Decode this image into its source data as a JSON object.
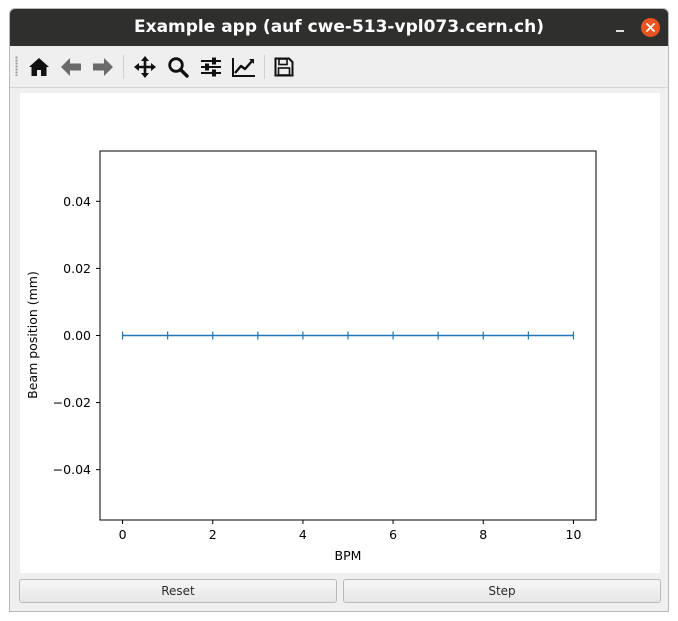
{
  "window": {
    "title": "Example app (auf cwe-513-vpl073.cern.ch)"
  },
  "toolbar": {
    "items": [
      {
        "icon": "home-icon",
        "label": "Home"
      },
      {
        "icon": "back-arrow-icon",
        "label": "Back"
      },
      {
        "icon": "forward-arrow-icon",
        "label": "Forward"
      },
      {
        "icon": "pan-icon",
        "label": "Pan"
      },
      {
        "icon": "zoom-icon",
        "label": "Zoom"
      },
      {
        "icon": "subplots-icon",
        "label": "Configure subplots"
      },
      {
        "icon": "axes-edit-icon",
        "label": "Edit axis"
      },
      {
        "icon": "save-icon",
        "label": "Save"
      }
    ]
  },
  "buttons": {
    "reset_label": "Reset",
    "step_label": "Step"
  },
  "colors": {
    "line": "#1f77b4",
    "titlebar": "#2f2f2e",
    "close_button": "#e95420"
  },
  "chart_data": {
    "type": "line",
    "title": "",
    "xlabel": "BPM",
    "ylabel": "Beam position (mm)",
    "x": [
      0,
      1,
      2,
      3,
      4,
      5,
      6,
      7,
      8,
      9,
      10
    ],
    "series": [
      {
        "values": [
          0,
          0,
          0,
          0,
          0,
          0,
          0,
          0,
          0,
          0,
          0
        ],
        "marker": "|"
      }
    ],
    "xlim": [
      -0.5,
      10.5
    ],
    "ylim": [
      -0.055,
      0.055
    ],
    "xticks": [
      0,
      2,
      4,
      6,
      8,
      10
    ],
    "xtick_labels": [
      "0",
      "2",
      "4",
      "6",
      "8",
      "10"
    ],
    "yticks": [
      0.04,
      0.02,
      0.0,
      -0.02,
      -0.04
    ],
    "ytick_labels": [
      "0.04",
      "0.02",
      "0.00",
      "−0.02",
      "−0.04"
    ],
    "grid": false,
    "legend": "none"
  }
}
